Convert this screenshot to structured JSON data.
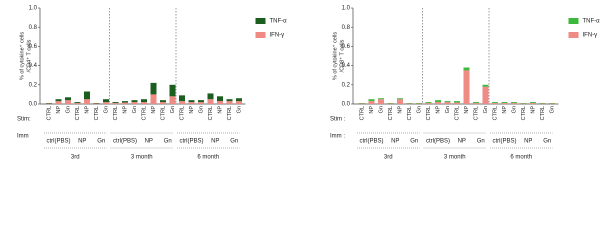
{
  "chart_data": [
    {
      "type": "bar",
      "stacked": true,
      "y_label": [
        "% of cytokine⁺ cells",
        "/CD4⁺ T cells"
      ],
      "ylim": [
        0,
        1.0
      ],
      "yticks": [
        {
          "value": 0,
          "label": "0.0"
        },
        0.2,
        0.4,
        0.6,
        0.8,
        {
          "value": 1.0,
          "label": "1.0"
        }
      ],
      "stim_label": "Stim:",
      "imm_label": "Imm",
      "time_groups": [
        {
          "label": "3rd",
          "imm_groups": [
            {
              "label": "ctrl(PBS)",
              "stim": [
                "CTRL",
                "NP",
                "Gn"
              ]
            },
            {
              "label": "NP",
              "stim": [
                "CTRL",
                "NP"
              ]
            },
            {
              "label": "Gn",
              "stim": [
                "CTRL",
                "Gn"
              ]
            }
          ]
        },
        {
          "label": "3 month",
          "imm_groups": [
            {
              "label": "ctrl(PBS)",
              "stim": [
                "CTRL",
                "NP",
                "Gn"
              ]
            },
            {
              "label": "NP",
              "stim": [
                "CTRL",
                "NP"
              ]
            },
            {
              "label": "Gn",
              "stim": [
                "CTRL",
                "Gn"
              ]
            }
          ]
        },
        {
          "label": "6 month",
          "imm_groups": [
            {
              "label": "ctrl(PBS)",
              "stim": [
                "CTRL",
                "NP",
                "Gn"
              ]
            },
            {
              "label": "NP",
              "stim": [
                "CTRL",
                "NP"
              ]
            },
            {
              "label": "Gn",
              "stim": [
                "CTRL",
                "Gn"
              ]
            }
          ]
        }
      ],
      "series": [
        {
          "name": "TNF-α",
          "color": "#1b5e20",
          "values": [
            0.005,
            0.02,
            0.03,
            0.01,
            0.08,
            0.005,
            0.03,
            0.01,
            0.015,
            0.02,
            0.03,
            0.12,
            0.02,
            0.12,
            0.06,
            0.02,
            0.02,
            0.06,
            0.05,
            0.02,
            0.03
          ]
        },
        {
          "name": "IFN-γ",
          "color": "#f08a84",
          "values": [
            0.005,
            0.03,
            0.04,
            0.01,
            0.05,
            0.005,
            0.02,
            0.01,
            0.015,
            0.02,
            0.02,
            0.1,
            0.02,
            0.08,
            0.03,
            0.02,
            0.02,
            0.05,
            0.03,
            0.03,
            0.03
          ]
        }
      ]
    },
    {
      "type": "bar",
      "stacked": true,
      "y_label": [
        "% of cytokine⁺ cells",
        "/CD8⁺ T cells"
      ],
      "ylim": [
        0,
        1.0
      ],
      "yticks": [
        {
          "value": 0,
          "label": "0.0"
        },
        0.2,
        0.4,
        0.6,
        0.8,
        {
          "value": 1.0,
          "label": "1.0"
        }
      ],
      "stim_label": "Stim :",
      "imm_label": "Imm :",
      "time_groups": [
        {
          "label": "3rd",
          "imm_groups": [
            {
              "label": "ctrl(PBS)",
              "stim": [
                "CTRL",
                "NP",
                "Gn"
              ]
            },
            {
              "label": "NP",
              "stim": [
                "CTRL",
                "NP"
              ]
            },
            {
              "label": "Gn",
              "stim": [
                "CTRL",
                "Gn"
              ]
            }
          ]
        },
        {
          "label": "3 month",
          "imm_groups": [
            {
              "label": "ctrl(PBS)",
              "stim": [
                "CTRL",
                "NP",
                "Gn"
              ]
            },
            {
              "label": "NP",
              "stim": [
                "CTRL",
                "NP"
              ]
            },
            {
              "label": "Gn",
              "stim": [
                "CTRL",
                "Gn"
              ]
            }
          ]
        },
        {
          "label": "6 month",
          "imm_groups": [
            {
              "label": "ctrl(PBS)",
              "stim": [
                "CTRL",
                "NP",
                "Gn"
              ]
            },
            {
              "label": "NP",
              "stim": [
                "CTRL",
                "NP"
              ]
            },
            {
              "label": "Gn",
              "stim": [
                "CTRL",
                "Gn"
              ]
            }
          ]
        }
      ],
      "series": [
        {
          "name": "TNF-α",
          "color": "#3cb83c",
          "values": [
            0.005,
            0.02,
            0.01,
            0.005,
            0.01,
            0.005,
            0.005,
            0.01,
            0.02,
            0.01,
            0.015,
            0.03,
            0.01,
            0.02,
            0.01,
            0.01,
            0.01,
            0.005,
            0.01,
            0.005,
            0.005
          ]
        },
        {
          "name": "IFN-γ",
          "color": "#f08a84",
          "values": [
            0.005,
            0.03,
            0.05,
            0.005,
            0.05,
            0.005,
            0.005,
            0.01,
            0.02,
            0.02,
            0.015,
            0.35,
            0.01,
            0.18,
            0.01,
            0.01,
            0.01,
            0.005,
            0.01,
            0.005,
            0.005
          ]
        }
      ]
    }
  ]
}
